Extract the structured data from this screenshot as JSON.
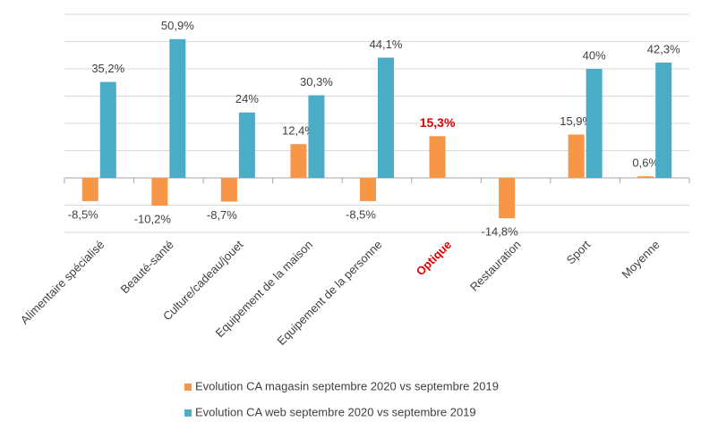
{
  "chart_data": {
    "type": "bar",
    "categories": [
      "Alimentaire spécialisé",
      "Beauté-santé",
      "Culture/cadeau/jouet",
      "Equipement de la maison",
      "Equipement de la personne",
      "Optique",
      "Restauration",
      "Sport",
      "Moyenne"
    ],
    "series": [
      {
        "name": "Evolution CA magasin septembre 2020 vs septembre 2019",
        "color": "#f79646",
        "values": [
          -8.5,
          -10.2,
          -8.7,
          12.4,
          -8.5,
          15.3,
          -14.8,
          15.9,
          0.6
        ],
        "value_labels": [
          "-8,5%",
          "-10,2%",
          "-8,7%",
          "12,4%",
          "-8,5%",
          "15,3%",
          "-14,8%",
          "15,9%",
          "0,6%"
        ]
      },
      {
        "name": "Evolution CA web septembre 2020 vs septembre 2019",
        "color": "#4bacc6",
        "values": [
          35.2,
          50.9,
          24,
          30.3,
          44.1,
          null,
          null,
          40,
          42.3
        ],
        "value_labels": [
          "35,2%",
          "50,9%",
          "24%",
          "30,3%",
          "44,1%",
          null,
          null,
          "40%",
          "42,3%"
        ]
      }
    ],
    "ylim": [
      -20,
      60
    ],
    "yticks": [
      -20,
      -10,
      0,
      10,
      20,
      30,
      40,
      50,
      60
    ],
    "grid": true,
    "highlight_index": 5,
    "highlight_color": "#e00000"
  }
}
